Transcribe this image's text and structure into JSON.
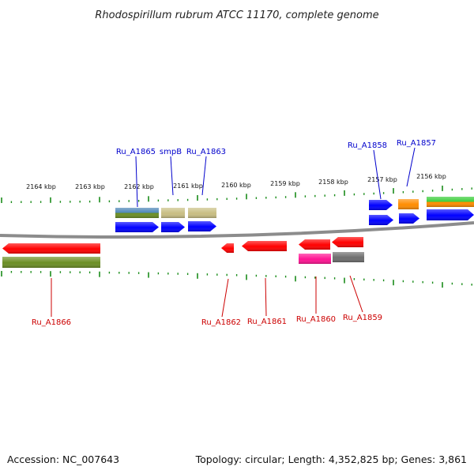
{
  "title": "Rhodospirillum rubrum ATCC 11170, complete genome",
  "footer": {
    "accession": "Accession: NC_007643",
    "summary": "Topology: circular; Length: 4,352,825 bp; Genes: 3,861"
  },
  "colors": {
    "forward_label": "#0000cc",
    "reverse_label": "#cc0000",
    "backbone": "#8c8c8c",
    "ticks": "#1a8c1a"
  },
  "scale": {
    "labels": [
      "2164 kbp",
      "2163 kbp",
      "2162 kbp",
      "2161 kbp",
      "2160 kbp",
      "2159 kbp",
      "2158 kbp",
      "2157 kbp",
      "2156 kbp"
    ]
  },
  "genes_forward": [
    {
      "label": "Ru_A1865",
      "color": "#0000ff"
    },
    {
      "label": "smpB",
      "color": "#0000ff"
    },
    {
      "label": "Ru_A1863",
      "color": "#0000ff"
    },
    {
      "label": "Ru_A1858",
      "color": "#0000ff"
    },
    {
      "label": "Ru_A1857",
      "color": "#0000ff"
    }
  ],
  "genes_reverse": [
    {
      "label": "Ru_A1866",
      "color": "#ff0000"
    },
    {
      "label": "Ru_A1862",
      "color": "#ff0000"
    },
    {
      "label": "Ru_A1861",
      "color": "#ff0000"
    },
    {
      "label": "Ru_A1860",
      "color": "#ff0000"
    },
    {
      "label": "Ru_A1859",
      "color": "#ff0000"
    }
  ],
  "features": [
    {
      "name": "feature-blue-olive",
      "color": "#4682b4",
      "color2": "#6b8e23"
    },
    {
      "name": "feature-khaki-1",
      "color": "#c8be82"
    },
    {
      "name": "feature-khaki-2",
      "color": "#c8be82"
    },
    {
      "name": "feature-orange",
      "color": "#ff8c00"
    },
    {
      "name": "feature-green-orange",
      "color": "#33cc33",
      "color2": "#ff8c00"
    },
    {
      "name": "feature-olive",
      "color": "#6b8e23"
    },
    {
      "name": "feature-magenta",
      "color": "#ff1493"
    },
    {
      "name": "feature-gray",
      "color": "#6e6e6e"
    }
  ]
}
